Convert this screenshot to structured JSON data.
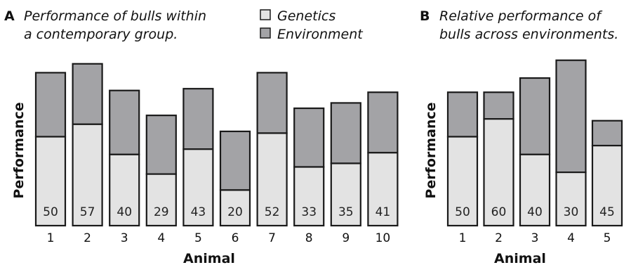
{
  "colors": {
    "genetics": "#e3e3e3",
    "environment": "#a3a3a6",
    "outline": "#1a1a1a"
  },
  "legend": {
    "genetics_label": "Genetics",
    "environment_label": "Environment"
  },
  "panel_a": {
    "letter": "A",
    "title_line1": "Performance of bulls within",
    "title_line2": "a contemporary group."
  },
  "panel_b": {
    "letter": "B",
    "title_line1": "Relative performance of",
    "title_line2": "bulls across environments."
  },
  "chart_data": [
    {
      "type": "bar",
      "stacked": true,
      "title": "Performance of bulls within a contemporary group.",
      "xlabel": "Animal",
      "ylabel": "Performance",
      "categories": [
        "1",
        "2",
        "3",
        "4",
        "5",
        "6",
        "7",
        "8",
        "9",
        "10"
      ],
      "series": [
        {
          "name": "Genetics",
          "values": [
            50,
            57,
            40,
            29,
            43,
            20,
            52,
            33,
            35,
            41
          ]
        },
        {
          "name": "Environment",
          "values": [
            36,
            34,
            36,
            33,
            34,
            33,
            34,
            33,
            34,
            34
          ]
        }
      ],
      "data_labels": [
        "50",
        "57",
        "40",
        "29",
        "43",
        "20",
        "52",
        "33",
        "35",
        "41"
      ],
      "ylim": [
        0,
        92
      ],
      "grid": false
    },
    {
      "type": "bar",
      "stacked": true,
      "title": "Relative performance of bulls across environments.",
      "xlabel": "Animal",
      "ylabel": "Performance",
      "categories": [
        "1",
        "2",
        "3",
        "4",
        "5"
      ],
      "series": [
        {
          "name": "Genetics",
          "values": [
            50,
            60,
            40,
            30,
            45
          ]
        },
        {
          "name": "Environment",
          "values": [
            25,
            15,
            43,
            63,
            14
          ]
        }
      ],
      "data_labels": [
        "50",
        "60",
        "40",
        "30",
        "45"
      ],
      "ylim": [
        0,
        96
      ],
      "grid": false
    }
  ]
}
